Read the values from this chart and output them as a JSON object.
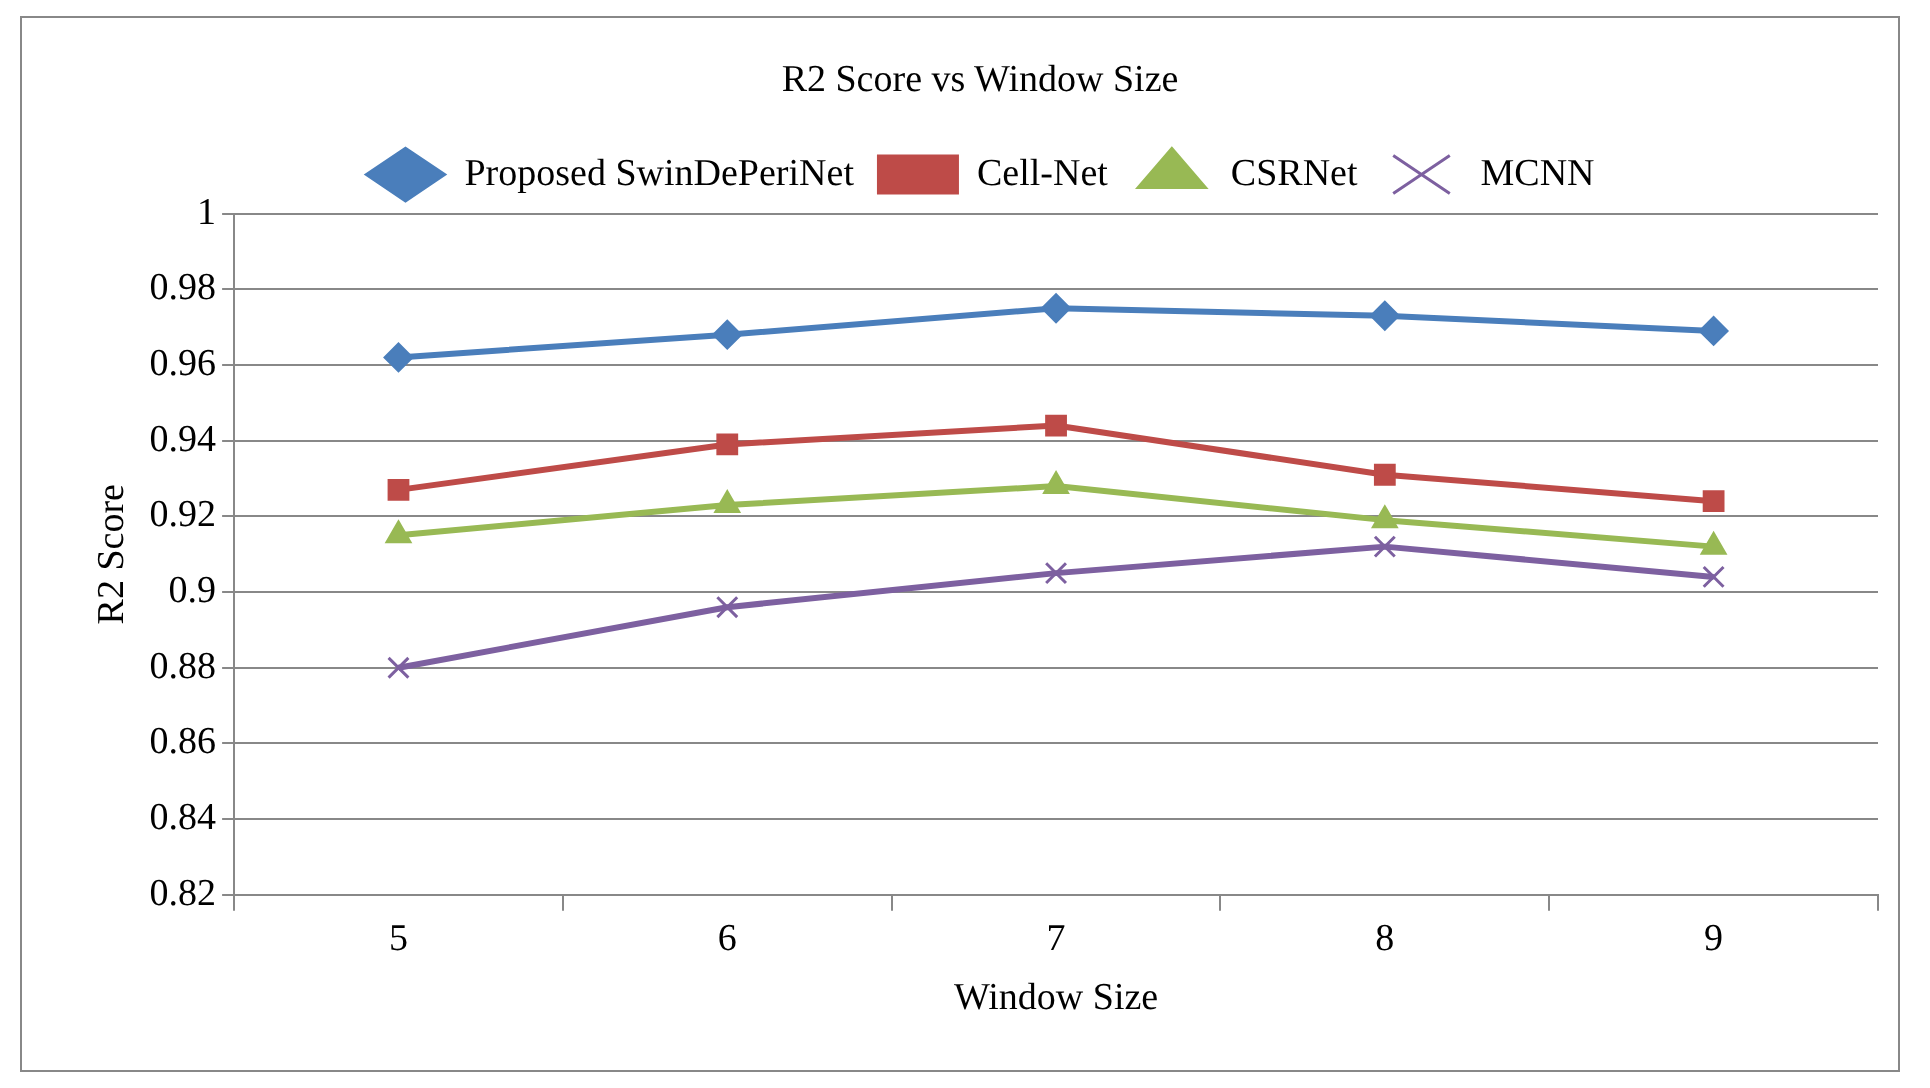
{
  "chart_data": {
    "type": "line",
    "title": "R2 Score vs Window Size",
    "xlabel": "Window Size",
    "ylabel": "R2 Score",
    "categories": [
      "5",
      "6",
      "7",
      "8",
      "9"
    ],
    "series": [
      {
        "name": "Proposed SwinDePeriNet",
        "color": "#4a7ebb",
        "marker": "diamond",
        "values": [
          0.962,
          0.968,
          0.975,
          0.973,
          0.969
        ]
      },
      {
        "name": "Cell-Net",
        "color": "#be4b48",
        "marker": "square",
        "values": [
          0.927,
          0.939,
          0.944,
          0.931,
          0.924
        ]
      },
      {
        "name": "CSRNet",
        "color": "#98b954",
        "marker": "triangle",
        "values": [
          0.915,
          0.923,
          0.928,
          0.919,
          0.912
        ]
      },
      {
        "name": "MCNN",
        "color": "#7d60a0",
        "marker": "cross",
        "values": [
          0.88,
          0.896,
          0.905,
          0.912,
          0.904
        ]
      }
    ],
    "ylim": [
      0.82,
      1
    ],
    "yticks": [
      0.82,
      0.84,
      0.86,
      0.88,
      0.9,
      0.92,
      0.94,
      0.96,
      0.98,
      1
    ],
    "grid": "y",
    "legend": "top",
    "line_style": "solid"
  }
}
